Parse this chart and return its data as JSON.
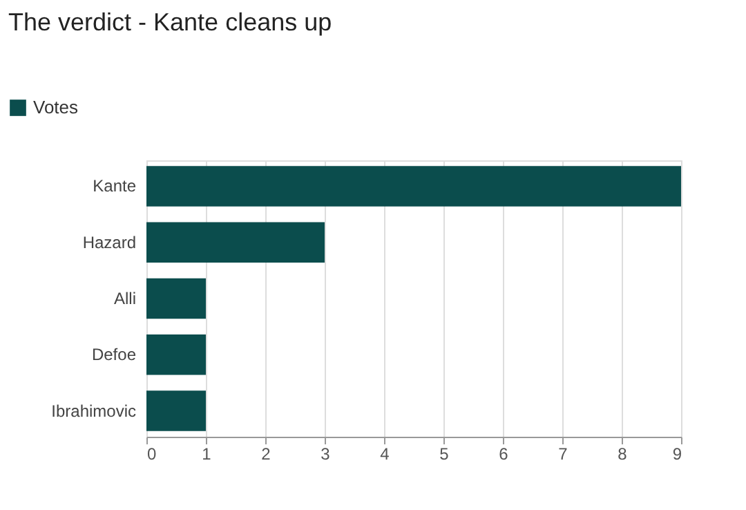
{
  "chart_data": {
    "type": "bar",
    "orientation": "horizontal",
    "title": "The verdict - Kante cleans up",
    "categories": [
      "Kante",
      "Hazard",
      "Alli",
      "Defoe",
      "Ibrahimovic"
    ],
    "series": [
      {
        "name": "Votes",
        "color": "#0b4d4d",
        "values": [
          9,
          3,
          1,
          1,
          1
        ]
      }
    ],
    "xlim": [
      0,
      9
    ],
    "xticks": [
      0,
      1,
      2,
      3,
      4,
      5,
      6,
      7,
      8,
      9
    ],
    "grid": "x",
    "legend": "top left"
  }
}
